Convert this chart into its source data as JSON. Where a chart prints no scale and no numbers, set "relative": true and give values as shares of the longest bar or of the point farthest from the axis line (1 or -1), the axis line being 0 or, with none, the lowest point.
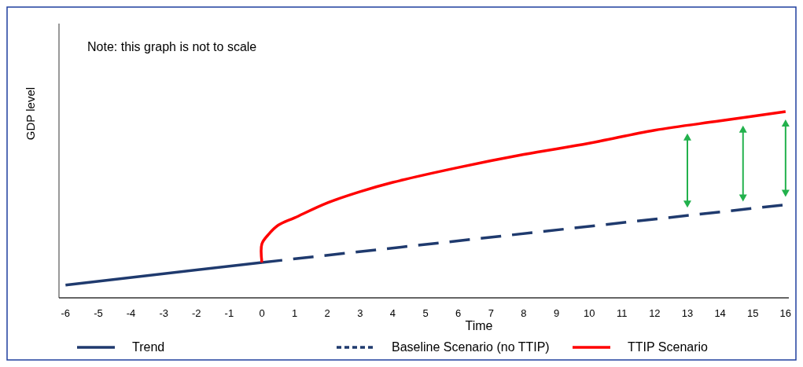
{
  "chart_data": {
    "type": "line",
    "relative": true,
    "xlabel": "Time",
    "ylabel": "GDP level",
    "annotations": [
      "Note: this graph is not to scale"
    ],
    "xlim": [
      -6.2,
      16.1
    ],
    "xticks": [
      -6,
      -5,
      -4,
      -3,
      -2,
      -1,
      0,
      1,
      2,
      3,
      4,
      5,
      6,
      7,
      8,
      9,
      10,
      11,
      12,
      13,
      14,
      15,
      16
    ],
    "legend": "bottom",
    "series": [
      {
        "name": "Trend",
        "color": "#1f3a6e",
        "line_style": "solid",
        "x": [
          -6,
          0
        ],
        "values": [
          0.069,
          0.19
        ]
      },
      {
        "name": "Baseline Scenario (no TTIP)",
        "color": "#1f3a6e",
        "line_style": "dashed",
        "x": [
          0,
          16
        ],
        "values": [
          0.19,
          0.5
        ]
      },
      {
        "name": "TTIP Scenario",
        "color": "#ff0000",
        "line_style": "solid",
        "x": [
          0,
          0,
          0.2,
          0.5,
          1,
          2,
          3,
          4,
          6,
          8,
          10,
          12,
          14,
          16
        ],
        "values": [
          0.19,
          0.29,
          0.34,
          0.39,
          0.43,
          0.51,
          0.57,
          0.62,
          0.7,
          0.77,
          0.83,
          0.9,
          0.95,
          1
        ]
      }
    ]
  }
}
